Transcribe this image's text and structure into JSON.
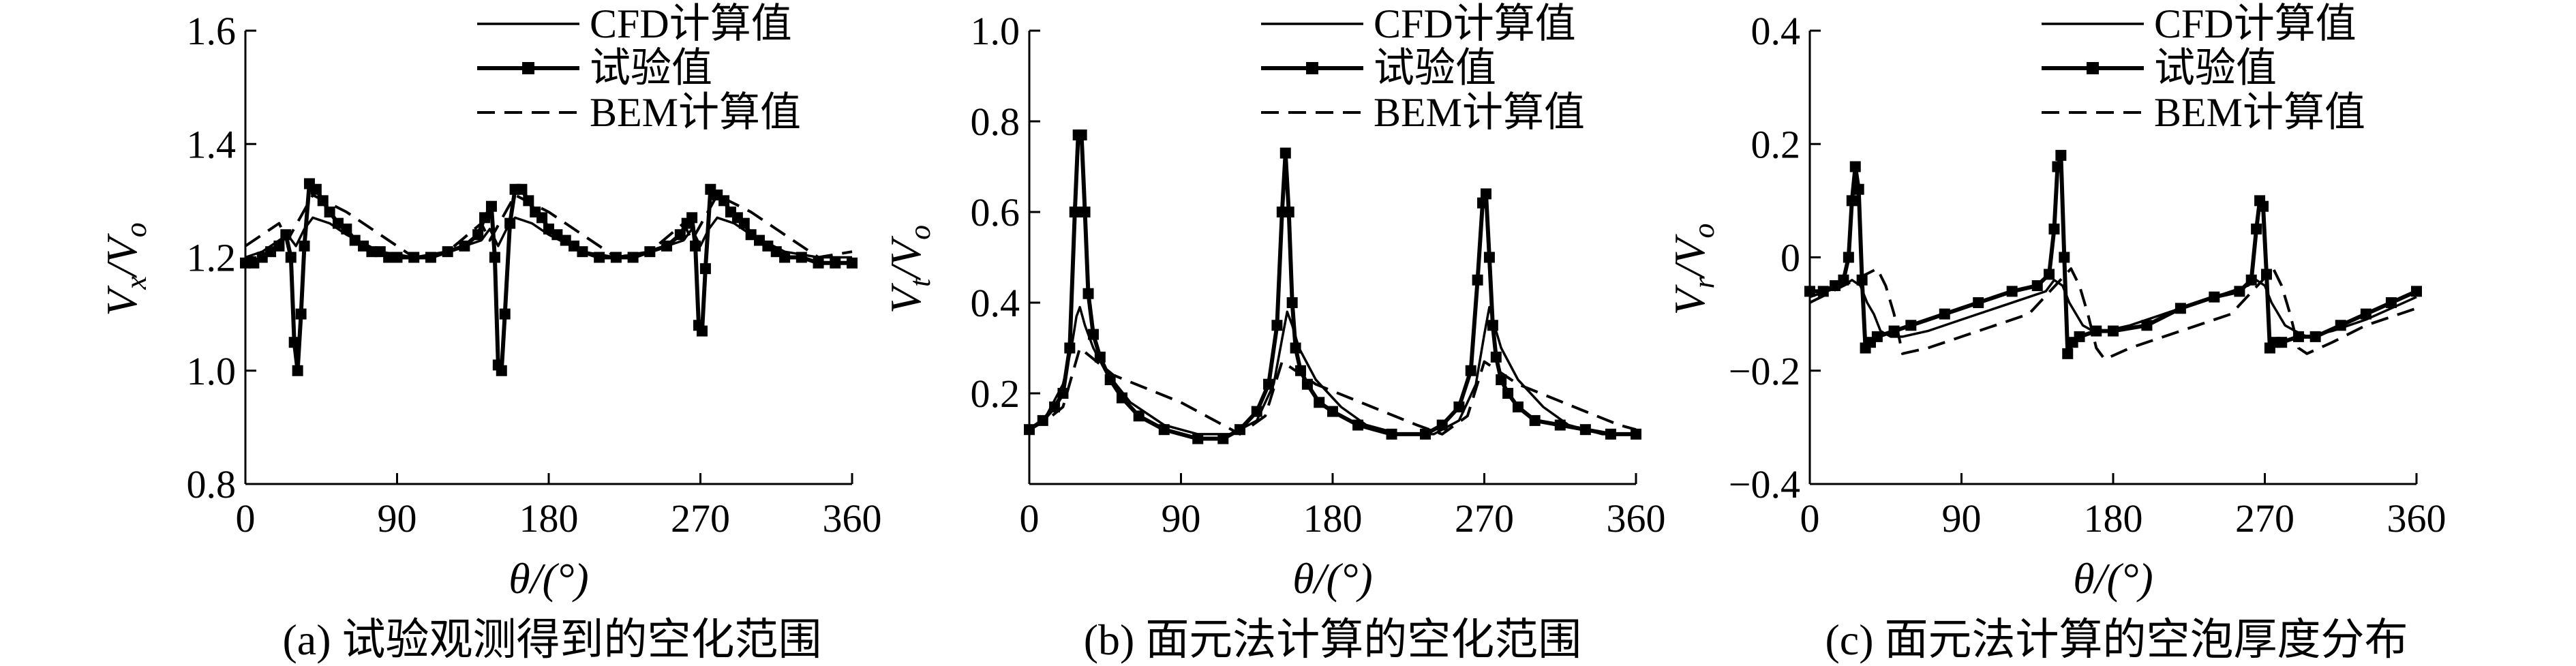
{
  "chart_data": [
    {
      "type": "line",
      "ylabel": "Vx/Vo",
      "ylabel_main": "V",
      "ylabel_sub1": "x",
      "ylabel_sep": "/V",
      "ylabel_sub2": "o",
      "xlabel": "θ/(°)",
      "caption": "(a) 试验观测得到的空化范围",
      "xlim": [
        0,
        360
      ],
      "ylim": [
        0.8,
        1.6
      ],
      "xticks": [
        "0",
        "90",
        "180",
        "270",
        "360"
      ],
      "yticks": [
        "0.8",
        "1.0",
        "1.2",
        "1.4",
        "1.6"
      ],
      "ytick_values": [
        0.8,
        1.0,
        1.2,
        1.4,
        1.6
      ],
      "legend": [
        "CFD计算值",
        "试验值",
        "BEM计算值"
      ],
      "legend_position": "top-right",
      "series": [
        {
          "name": "CFD计算值",
          "style": "solid",
          "x": [
            0,
            10,
            20,
            25,
            30,
            35,
            40,
            50,
            60,
            80,
            100,
            120,
            140,
            145,
            150,
            155,
            160,
            170,
            180,
            200,
            220,
            240,
            260,
            265,
            270,
            275,
            280,
            290,
            300,
            320,
            340,
            360
          ],
          "y": [
            1.2,
            1.21,
            1.23,
            1.24,
            1.22,
            1.25,
            1.27,
            1.26,
            1.24,
            1.21,
            1.2,
            1.21,
            1.23,
            1.25,
            1.22,
            1.25,
            1.27,
            1.26,
            1.24,
            1.21,
            1.2,
            1.21,
            1.23,
            1.25,
            1.22,
            1.25,
            1.27,
            1.26,
            1.24,
            1.21,
            1.2,
            1.2
          ]
        },
        {
          "name": "试验值",
          "style": "solid-square",
          "x": [
            0,
            5,
            10,
            15,
            20,
            24,
            27,
            29,
            31,
            33,
            35,
            38,
            42,
            46,
            50,
            55,
            60,
            65,
            70,
            75,
            80,
            85,
            90,
            100,
            110,
            120,
            130,
            138,
            142,
            146,
            148,
            150,
            152,
            154,
            157,
            160,
            164,
            168,
            172,
            176,
            180,
            185,
            190,
            195,
            200,
            210,
            220,
            230,
            240,
            250,
            258,
            262,
            265,
            267,
            269,
            271,
            273,
            276,
            280,
            284,
            288,
            292,
            296,
            300,
            305,
            310,
            315,
            320,
            330,
            340,
            350,
            360
          ],
          "y": [
            1.19,
            1.19,
            1.2,
            1.21,
            1.22,
            1.24,
            1.2,
            1.05,
            1.0,
            1.1,
            1.22,
            1.33,
            1.32,
            1.3,
            1.28,
            1.26,
            1.25,
            1.23,
            1.22,
            1.21,
            1.21,
            1.2,
            1.2,
            1.2,
            1.2,
            1.21,
            1.22,
            1.24,
            1.27,
            1.29,
            1.2,
            1.01,
            1.0,
            1.1,
            1.26,
            1.32,
            1.32,
            1.3,
            1.28,
            1.27,
            1.25,
            1.24,
            1.23,
            1.22,
            1.21,
            1.2,
            1.2,
            1.2,
            1.21,
            1.22,
            1.24,
            1.26,
            1.27,
            1.22,
            1.08,
            1.07,
            1.18,
            1.32,
            1.31,
            1.3,
            1.28,
            1.27,
            1.26,
            1.24,
            1.23,
            1.22,
            1.21,
            1.2,
            1.2,
            1.19,
            1.19,
            1.19
          ]
        },
        {
          "name": "BEM计算值",
          "style": "dashed",
          "x": [
            0,
            20,
            25,
            40,
            60,
            80,
            100,
            120,
            140,
            145,
            160,
            180,
            200,
            220,
            240,
            260,
            265,
            280,
            300,
            320,
            340,
            360
          ],
          "y": [
            1.22,
            1.26,
            1.23,
            1.31,
            1.28,
            1.24,
            1.2,
            1.21,
            1.26,
            1.23,
            1.31,
            1.28,
            1.24,
            1.2,
            1.21,
            1.26,
            1.23,
            1.31,
            1.28,
            1.24,
            1.2,
            1.21
          ]
        }
      ]
    },
    {
      "type": "line",
      "ylabel": "Vt/Vo",
      "ylabel_main": "V",
      "ylabel_sub1": "t",
      "ylabel_sep": "/V",
      "ylabel_sub2": "o",
      "xlabel": "θ/(°)",
      "caption": "(b) 面元法计算的空化范围",
      "xlim": [
        0,
        360
      ],
      "ylim": [
        0.0,
        1.0
      ],
      "xticks": [
        "0",
        "90",
        "180",
        "270",
        "360"
      ],
      "yticks": [
        "0.2",
        "0.4",
        "0.6",
        "0.8",
        "1.0"
      ],
      "ytick_values": [
        0.2,
        0.4,
        0.6,
        0.8,
        1.0
      ],
      "legend": [
        "CFD计算值",
        "试验值",
        "BEM计算值"
      ],
      "legend_position": "top-right",
      "series": [
        {
          "name": "CFD计算值",
          "style": "solid",
          "x": [
            0,
            10,
            20,
            25,
            28,
            30,
            33,
            38,
            45,
            60,
            80,
            100,
            120,
            135,
            145,
            150,
            153,
            156,
            160,
            170,
            185,
            200,
            220,
            240,
            255,
            265,
            270,
            273,
            276,
            280,
            290,
            305,
            320,
            340,
            360
          ],
          "y": [
            0.12,
            0.15,
            0.22,
            0.3,
            0.37,
            0.39,
            0.35,
            0.3,
            0.25,
            0.18,
            0.13,
            0.11,
            0.11,
            0.14,
            0.22,
            0.32,
            0.38,
            0.35,
            0.3,
            0.23,
            0.17,
            0.13,
            0.11,
            0.11,
            0.14,
            0.22,
            0.33,
            0.39,
            0.35,
            0.3,
            0.23,
            0.17,
            0.13,
            0.11,
            0.11
          ]
        },
        {
          "name": "试验值",
          "style": "solid-square",
          "x": [
            0,
            8,
            15,
            20,
            24,
            27,
            29,
            31,
            33,
            35,
            38,
            42,
            48,
            55,
            65,
            80,
            100,
            115,
            125,
            135,
            142,
            147,
            150,
            152,
            154,
            156,
            158,
            161,
            165,
            172,
            180,
            195,
            215,
            235,
            245,
            255,
            262,
            266,
            269,
            271,
            273,
            275,
            277,
            280,
            284,
            290,
            300,
            315,
            330,
            345,
            360
          ],
          "y": [
            0.12,
            0.14,
            0.17,
            0.2,
            0.3,
            0.6,
            0.77,
            0.77,
            0.6,
            0.42,
            0.33,
            0.28,
            0.23,
            0.19,
            0.15,
            0.12,
            0.1,
            0.1,
            0.12,
            0.16,
            0.22,
            0.35,
            0.6,
            0.73,
            0.6,
            0.4,
            0.3,
            0.25,
            0.22,
            0.18,
            0.16,
            0.13,
            0.11,
            0.11,
            0.13,
            0.17,
            0.25,
            0.45,
            0.62,
            0.64,
            0.5,
            0.35,
            0.28,
            0.23,
            0.2,
            0.17,
            0.14,
            0.13,
            0.12,
            0.11,
            0.11
          ]
        },
        {
          "name": "BEM计算值",
          "style": "dashed",
          "x": [
            0,
            10,
            20,
            30,
            50,
            70,
            90,
            110,
            125,
            140,
            150,
            170,
            190,
            210,
            230,
            245,
            260,
            270,
            290,
            310,
            330,
            350,
            360
          ],
          "y": [
            0.12,
            0.14,
            0.17,
            0.3,
            0.24,
            0.21,
            0.18,
            0.14,
            0.11,
            0.15,
            0.27,
            0.22,
            0.19,
            0.16,
            0.13,
            0.11,
            0.15,
            0.27,
            0.22,
            0.19,
            0.16,
            0.13,
            0.12
          ]
        }
      ]
    },
    {
      "type": "line",
      "ylabel": "Vr/Vo",
      "ylabel_main": "V",
      "ylabel_sub1": "r",
      "ylabel_sep": "/V",
      "ylabel_sub2": "o",
      "xlabel": "θ/(°)",
      "caption": "(c) 面元法计算的空泡厚度分布",
      "xlim": [
        0,
        360
      ],
      "ylim": [
        -0.4,
        0.4
      ],
      "xticks": [
        "0",
        "90",
        "180",
        "270",
        "360"
      ],
      "yticks": [
        "−0.4",
        "−0.2",
        "0",
        "0.2",
        "0.4"
      ],
      "ytick_values": [
        -0.4,
        -0.2,
        0,
        0.2,
        0.4
      ],
      "legend": [
        "CFD计算值",
        "试验值",
        "BEM计算值"
      ],
      "legend_position": "top-right",
      "series": [
        {
          "name": "CFD计算值",
          "style": "solid",
          "x": [
            0,
            10,
            20,
            25,
            30,
            34,
            38,
            42,
            48,
            55,
            70,
            90,
            110,
            130,
            140,
            145,
            150,
            154,
            158,
            162,
            168,
            175,
            190,
            210,
            230,
            250,
            260,
            265,
            270,
            274,
            278,
            282,
            288,
            295,
            310,
            330,
            345,
            360
          ],
          "y": [
            -0.07,
            -0.06,
            -0.05,
            -0.04,
            -0.05,
            -0.08,
            -0.1,
            -0.13,
            -0.14,
            -0.14,
            -0.13,
            -0.11,
            -0.09,
            -0.07,
            -0.06,
            -0.04,
            -0.05,
            -0.08,
            -0.1,
            -0.12,
            -0.13,
            -0.13,
            -0.12,
            -0.1,
            -0.08,
            -0.06,
            -0.05,
            -0.04,
            -0.05,
            -0.08,
            -0.1,
            -0.12,
            -0.13,
            -0.14,
            -0.13,
            -0.11,
            -0.09,
            -0.07
          ]
        },
        {
          "name": "试验值",
          "style": "solid-square",
          "x": [
            0,
            8,
            15,
            20,
            23,
            25,
            27,
            29,
            31,
            33,
            36,
            40,
            50,
            60,
            80,
            100,
            120,
            135,
            142,
            145,
            147,
            149,
            151,
            153,
            156,
            160,
            170,
            180,
            200,
            220,
            240,
            255,
            262,
            265,
            267,
            269,
            271,
            273,
            276,
            280,
            290,
            300,
            315,
            330,
            345,
            360
          ],
          "y": [
            -0.06,
            -0.06,
            -0.05,
            -0.04,
            0.0,
            0.1,
            0.16,
            0.12,
            -0.04,
            -0.16,
            -0.15,
            -0.14,
            -0.13,
            -0.12,
            -0.1,
            -0.08,
            -0.06,
            -0.05,
            -0.03,
            0.05,
            0.16,
            0.18,
            0.0,
            -0.17,
            -0.15,
            -0.14,
            -0.13,
            -0.13,
            -0.12,
            -0.09,
            -0.07,
            -0.06,
            -0.04,
            0.05,
            0.1,
            0.09,
            -0.03,
            -0.16,
            -0.15,
            -0.15,
            -0.14,
            -0.14,
            -0.12,
            -0.1,
            -0.08,
            -0.06
          ]
        },
        {
          "name": "BEM计算值",
          "style": "dashed",
          "x": [
            0,
            20,
            40,
            45,
            50,
            55,
            70,
            90,
            110,
            130,
            155,
            160,
            165,
            170,
            175,
            190,
            210,
            230,
            250,
            275,
            280,
            285,
            290,
            295,
            310,
            330,
            350,
            360
          ],
          "y": [
            -0.08,
            -0.05,
            -0.02,
            -0.05,
            -0.1,
            -0.17,
            -0.16,
            -0.14,
            -0.12,
            -0.1,
            -0.02,
            -0.05,
            -0.1,
            -0.16,
            -0.18,
            -0.16,
            -0.14,
            -0.12,
            -0.1,
            -0.02,
            -0.05,
            -0.1,
            -0.16,
            -0.17,
            -0.15,
            -0.12,
            -0.1,
            -0.09
          ]
        }
      ]
    }
  ]
}
